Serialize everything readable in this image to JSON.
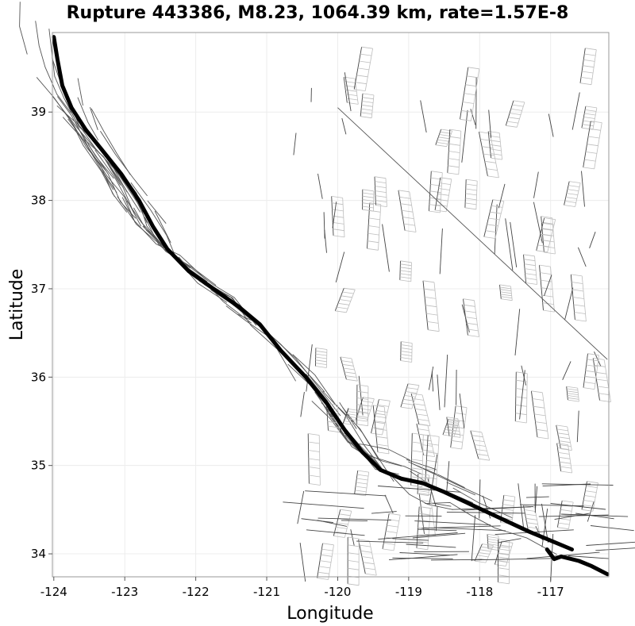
{
  "chart_data": {
    "type": "line",
    "title": "Rupture 443386, M8.23, 1064.39 km, rate=1.57E-8",
    "xlabel": "Longitude",
    "ylabel": "Latitude",
    "xlim": [
      -124.02,
      -116.18
    ],
    "ylim": [
      33.74,
      39.9
    ],
    "xticks": [
      -124,
      -123,
      -122,
      -121,
      -120,
      -119,
      -118,
      -117
    ],
    "yticks": [
      34,
      35,
      36,
      37,
      38,
      39
    ],
    "grid": true,
    "legend": "none",
    "series": [
      {
        "role": "rupture-trace",
        "color": "#000000",
        "points": [
          [
            -124.0,
            39.85
          ],
          [
            -123.95,
            39.6
          ],
          [
            -123.88,
            39.3
          ],
          [
            -123.75,
            39.05
          ],
          [
            -123.55,
            38.8
          ],
          [
            -123.3,
            38.55
          ],
          [
            -123.05,
            38.3
          ],
          [
            -122.8,
            38.0
          ],
          [
            -122.6,
            37.7
          ],
          [
            -122.4,
            37.45
          ],
          [
            -122.1,
            37.2
          ],
          [
            -121.75,
            37.0
          ],
          [
            -121.4,
            36.8
          ],
          [
            -121.1,
            36.6
          ],
          [
            -120.8,
            36.3
          ],
          [
            -120.45,
            36.0
          ],
          [
            -120.15,
            35.7
          ],
          [
            -119.9,
            35.4
          ],
          [
            -119.65,
            35.15
          ],
          [
            -119.4,
            34.95
          ],
          [
            -119.1,
            34.85
          ],
          [
            -118.8,
            34.8
          ],
          [
            -118.5,
            34.7
          ],
          [
            -118.1,
            34.55
          ],
          [
            -117.7,
            34.4
          ],
          [
            -117.3,
            34.25
          ],
          [
            -117.0,
            34.15
          ],
          [
            -116.7,
            34.05
          ]
        ]
      },
      {
        "role": "rupture-trace-branch",
        "color": "#000000",
        "points": [
          [
            -117.05,
            34.05
          ],
          [
            -116.95,
            33.94
          ],
          [
            -116.85,
            33.97
          ],
          [
            -116.6,
            33.92
          ],
          [
            -116.42,
            33.86
          ],
          [
            -116.2,
            33.77
          ]
        ]
      }
    ],
    "background_color": "#d8d8d8",
    "rupture_color": "#000000"
  }
}
